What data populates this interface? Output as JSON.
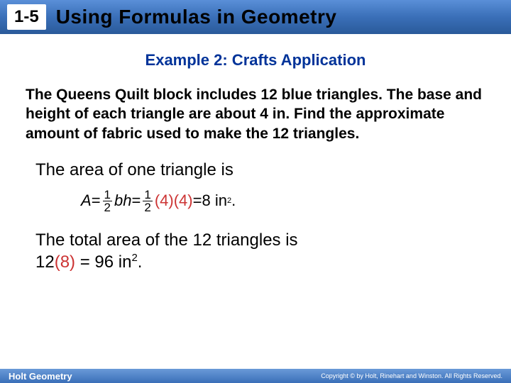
{
  "header": {
    "lesson_number": "1-5",
    "lesson_title": "Using Formulas in Geometry"
  },
  "example": {
    "heading": "Example 2: Crafts Application",
    "problem": "The Queens Quilt block includes 12 blue triangles. The base and height of each triangle are about 4 in. Find the approximate amount of fabric used to make the 12 triangles."
  },
  "solution": {
    "statement_1": "The area of one triangle is",
    "formula": {
      "lhs_var": "A",
      "eq1": " = ",
      "frac1_num": "1",
      "frac1_den": "2",
      "bh": "bh",
      "eq2": " = ",
      "frac2_num": "1",
      "frac2_den": "2",
      "subst": "(4)(4)",
      "eq3": " = ",
      "result_val": "8 in",
      "result_exp": "2",
      "period": "."
    },
    "statement_2_a": "The total area of the 12 triangles is",
    "statement_2_b": "12",
    "statement_2_c": "(8)",
    "statement_2_d": " = 96 in",
    "statement_2_exp": "2",
    "statement_2_e": "."
  },
  "footer": {
    "left": "Holt Geometry",
    "right": "Copyright © by Holt, Rinehart and Winston. All Rights Reserved."
  },
  "colors": {
    "accent_blue": "#003399",
    "red_sub": "#cc3333",
    "header_grad_top": "#5a8fd8",
    "header_grad_bottom": "#2a5a9a"
  }
}
